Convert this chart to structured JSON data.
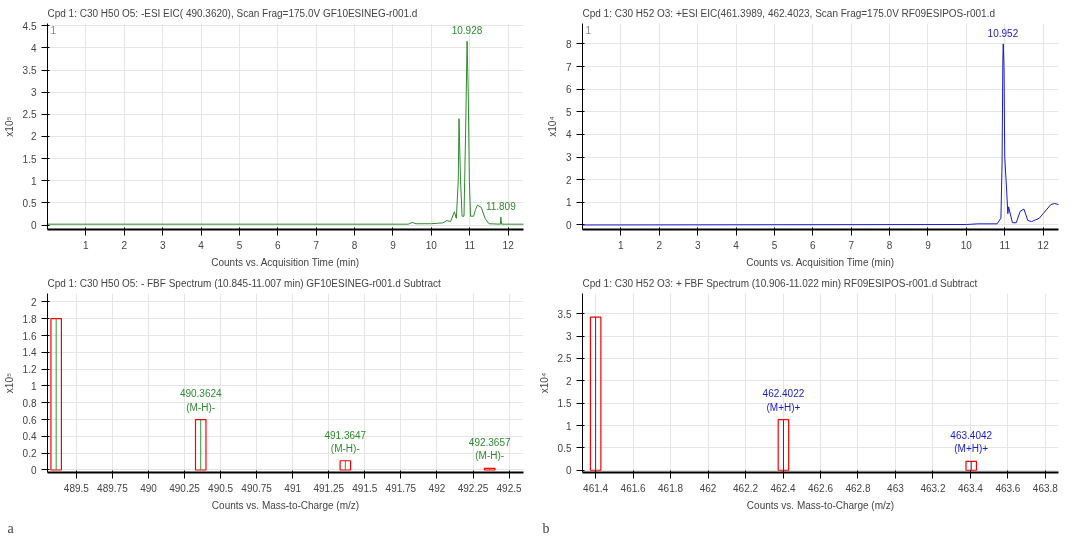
{
  "chart_data": [
    {
      "type": "line",
      "title": "Cpd 1: C30 H50 O5: -ESI EIC( 490.3620), Scan Frag=175.0V GF10ESINEG-r001.d",
      "xlabel": "Counts vs. Acquisition Time (min)",
      "ylabel": "x10⁵",
      "xlim": [
        0,
        12.4
      ],
      "ylim": [
        -0.1,
        4.55
      ],
      "xticks": [
        1,
        2,
        3,
        4,
        5,
        6,
        7,
        8,
        9,
        10,
        11,
        12
      ],
      "yticks": [
        0,
        0.5,
        1,
        1.5,
        2,
        2.5,
        3,
        3.5,
        4,
        4.5
      ],
      "grid": true,
      "marker": "none",
      "line_style": "solid",
      "series": [
        {
          "color": "#2e8b2e",
          "x": [
            0,
            9.4,
            9.5,
            9.6,
            10.0,
            10.3,
            10.4,
            10.5,
            10.6,
            10.65,
            10.7,
            10.72,
            10.76,
            10.8,
            10.85,
            10.9,
            10.93,
            10.96,
            10.99,
            11.02,
            11.1,
            11.15,
            11.2,
            11.3,
            11.4,
            11.5,
            11.8,
            11.81,
            11.83,
            12.4
          ],
          "values": [
            0.02,
            0.02,
            0.06,
            0.03,
            0.03,
            0.05,
            0.1,
            0.08,
            0.3,
            0.15,
            1.0,
            2.4,
            1.0,
            0.2,
            0.2,
            2.5,
            4.15,
            3.0,
            1.0,
            0.2,
            0.2,
            0.35,
            0.45,
            0.4,
            0.15,
            0.03,
            0.02,
            0.18,
            0.02,
            0.02
          ]
        }
      ],
      "annotations": [
        "1",
        {
          "text": "10.928",
          "x": 10.928,
          "y": 4.15
        },
        {
          "text": "11.809",
          "x": 11.809,
          "y": 0.18
        }
      ]
    },
    {
      "type": "line",
      "title": "Cpd 1: C30 H52 O3: +ESI EIC(461.3989, 462.4023, Scan Frag=175.0V RF09ESIPOS-r001.d",
      "xlabel": "Counts vs. Acquisition Time (min)",
      "ylabel": "x10⁴",
      "xlim": [
        0,
        12.4
      ],
      "ylim": [
        -0.2,
        8.9
      ],
      "xticks": [
        1,
        2,
        3,
        4,
        5,
        6,
        7,
        8,
        9,
        10,
        11,
        12
      ],
      "yticks": [
        0,
        1,
        2,
        3,
        4,
        5,
        6,
        7,
        8
      ],
      "grid": true,
      "marker": "none",
      "line_style": "solid",
      "series": [
        {
          "color": "#1a1acd",
          "x": [
            0,
            10.0,
            10.3,
            10.8,
            10.9,
            10.93,
            10.95,
            10.96,
            10.98,
            11.0,
            11.05,
            11.08,
            11.1,
            11.2,
            11.3,
            11.4,
            11.5,
            11.6,
            11.7,
            11.9,
            12.0,
            12.1,
            12.2,
            12.3,
            12.4
          ],
          "values": [
            0,
            0.02,
            0.05,
            0.05,
            0.3,
            2.7,
            7.2,
            8.0,
            7.0,
            3.0,
            1.5,
            0.5,
            0.8,
            0.1,
            0.1,
            0.6,
            0.7,
            0.2,
            0.15,
            0.3,
            0.5,
            0.7,
            0.9,
            0.95,
            0.9
          ]
        }
      ],
      "annotations": [
        "1",
        {
          "text": "10.952",
          "x": 10.952,
          "y": 8.0
        }
      ]
    },
    {
      "type": "bar",
      "title": "Cpd 1: C30 H50 O5: - FBF Spectrum (10.845-11.007 min) GF10ESINEG-r001.d  Subtract",
      "xlabel": "Counts vs. Mass-to-Charge (m/z)",
      "ylabel": "x10⁵",
      "xlim": [
        489.3,
        492.6
      ],
      "ylim": [
        -0.03,
        2.1
      ],
      "xticks": [
        489.5,
        489.75,
        490,
        490.25,
        490.5,
        490.75,
        491,
        491.25,
        491.5,
        491.75,
        492,
        492.25,
        492.5
      ],
      "yticks": [
        0,
        0.2,
        0.4,
        0.6,
        0.8,
        1,
        1.2,
        1.4,
        1.6,
        1.8,
        2
      ],
      "grid": true,
      "x": [
        489.36,
        490.3624,
        491.3647,
        492.3657
      ],
      "series": [
        {
          "color": "#ff0000",
          "values": [
            1.8,
            0.6,
            0.11,
            0.02
          ]
        },
        {
          "color": "#2e8b2e",
          "values": [
            1.8,
            0.6,
            0.11,
            0.02
          ]
        }
      ],
      "annotations": [
        "a",
        {
          "text": "490.3624\n(M-H)-",
          "x": 490.3624,
          "y": 0.6
        },
        {
          "text": "491.3647\n(M-H)-",
          "x": 491.3647,
          "y": 0.11
        },
        {
          "text": "492.3657\n(M-H)-",
          "x": 492.3657,
          "y": 0.02
        }
      ]
    },
    {
      "type": "bar",
      "title": "Cpd 1: C30 H52 O3: + FBF Spectrum (10.906-11.022 min) RF09ESIPOS-r001.d  Subtract",
      "xlabel": "Counts vs. Mass-to-Charge (m/z)",
      "ylabel": "x10⁴",
      "xlim": [
        461.33,
        463.87
      ],
      "ylim": [
        -0.05,
        3.95
      ],
      "xticks": [
        461.4,
        461.6,
        461.8,
        462,
        462.2,
        462.4,
        462.6,
        462.8,
        463,
        463.2,
        463.4,
        463.6,
        463.8
      ],
      "yticks": [
        0,
        0.5,
        1,
        1.5,
        2,
        2.5,
        3,
        3.5
      ],
      "grid": true,
      "x": [
        461.4,
        462.4022,
        463.4042
      ],
      "series": [
        {
          "color": "#ff0000",
          "values": [
            3.42,
            1.13,
            0.2
          ]
        },
        {
          "color": "#1a1acd",
          "values": [
            3.42,
            1.13,
            0.2
          ]
        }
      ],
      "annotations": [
        "b",
        {
          "text": "462.4022\n(M+H)+",
          "x": 462.4022,
          "y": 1.13
        },
        {
          "text": "463.4042\n(M+H)+",
          "x": 463.4042,
          "y": 0.2
        }
      ]
    }
  ]
}
